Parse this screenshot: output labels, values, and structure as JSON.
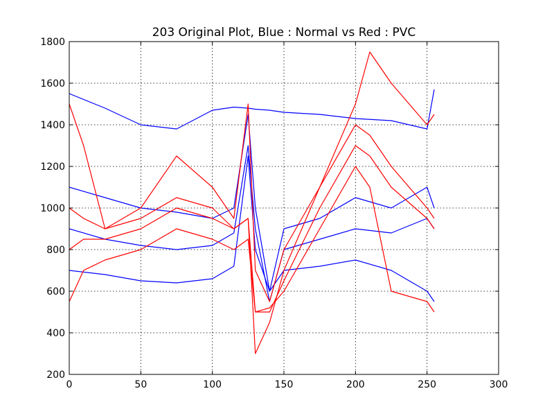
{
  "chart_data": {
    "type": "line",
    "title": "203 Original Plot, Blue : Normal vs Red : PVC",
    "xlabel": "",
    "ylabel": "",
    "xlim": [
      0,
      300
    ],
    "ylim": [
      200,
      1800
    ],
    "xticks": [
      "0",
      "50",
      "100",
      "150",
      "200",
      "250",
      "300"
    ],
    "yticks": [
      "200",
      "400",
      "600",
      "800",
      "1000",
      "1200",
      "1400",
      "1600",
      "1800"
    ],
    "grid": true,
    "legend": "none",
    "colors": {
      "normal": "#0000ff",
      "pvc": "#ff0000"
    },
    "series": [
      {
        "color": "#0000ff",
        "x": [
          0,
          25,
          50,
          75,
          100,
          115,
          125,
          130,
          140,
          150,
          175,
          200,
          225,
          250,
          255
        ],
        "values": [
          1550,
          1480,
          1400,
          1380,
          1470,
          1485,
          1480,
          1475,
          1470,
          1460,
          1450,
          1430,
          1420,
          1380,
          1570
        ]
      },
      {
        "color": "#0000ff",
        "x": [
          0,
          25,
          50,
          75,
          100,
          115,
          125,
          130,
          140,
          150,
          175,
          200,
          225,
          250,
          255
        ],
        "values": [
          1100,
          1050,
          1000,
          980,
          950,
          1000,
          1450,
          1000,
          600,
          900,
          950,
          1050,
          1000,
          1100,
          1000
        ]
      },
      {
        "color": "#0000ff",
        "x": [
          0,
          25,
          50,
          75,
          100,
          115,
          125,
          130,
          140,
          150,
          175,
          200,
          225,
          250,
          255
        ],
        "values": [
          900,
          850,
          820,
          800,
          820,
          880,
          1300,
          900,
          550,
          800,
          850,
          900,
          880,
          950,
          900
        ]
      },
      {
        "color": "#0000ff",
        "x": [
          0,
          25,
          50,
          75,
          100,
          115,
          125,
          130,
          140,
          150,
          175,
          200,
          225,
          250,
          255
        ],
        "values": [
          700,
          680,
          650,
          640,
          660,
          720,
          1250,
          800,
          600,
          700,
          720,
          750,
          700,
          600,
          550
        ]
      },
      {
        "color": "#ff0000",
        "x": [
          0,
          10,
          25,
          50,
          75,
          100,
          115,
          125,
          130,
          140,
          150,
          175,
          200,
          210,
          225,
          250,
          255
        ],
        "values": [
          1500,
          1300,
          900,
          1000,
          1250,
          1100,
          950,
          1500,
          700,
          550,
          800,
          1100,
          1500,
          1750,
          1600,
          1400,
          1450
        ]
      },
      {
        "color": "#ff0000",
        "x": [
          0,
          10,
          25,
          50,
          75,
          100,
          115,
          125,
          130,
          140,
          150,
          175,
          200,
          210,
          225,
          250,
          255
        ],
        "values": [
          1000,
          950,
          900,
          950,
          1050,
          1000,
          900,
          950,
          300,
          450,
          700,
          1100,
          1400,
          1350,
          1200,
          1000,
          950
        ]
      },
      {
        "color": "#ff0000",
        "x": [
          0,
          10,
          25,
          50,
          75,
          100,
          115,
          125,
          130,
          140,
          150,
          175,
          200,
          210,
          225,
          250,
          255
        ],
        "values": [
          800,
          850,
          850,
          900,
          1000,
          950,
          900,
          950,
          500,
          500,
          650,
          1000,
          1300,
          1250,
          1100,
          950,
          900
        ]
      },
      {
        "color": "#ff0000",
        "x": [
          0,
          10,
          25,
          50,
          75,
          100,
          115,
          125,
          130,
          140,
          150,
          175,
          200,
          210,
          225,
          250,
          255
        ],
        "values": [
          550,
          700,
          750,
          800,
          900,
          850,
          800,
          850,
          500,
          520,
          600,
          900,
          1200,
          1100,
          600,
          550,
          500
        ]
      }
    ]
  }
}
